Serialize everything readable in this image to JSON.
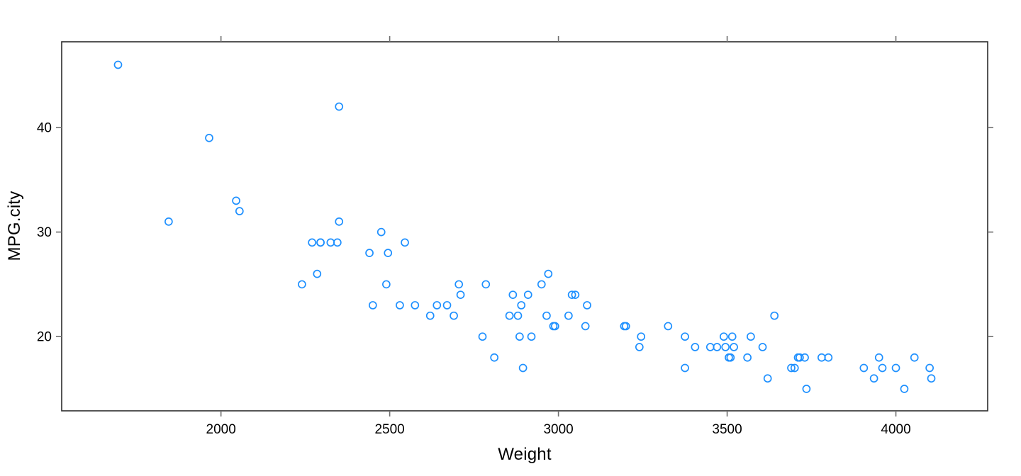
{
  "chart_data": {
    "type": "scatter",
    "title": "",
    "xlabel": "Weight",
    "ylabel": "MPG.city",
    "x_ticks": [
      2000,
      2500,
      3000,
      3500,
      4000
    ],
    "y_ticks": [
      20,
      30,
      40
    ],
    "xlim": [
      1528,
      4272
    ],
    "ylim": [
      12.9,
      48.2
    ],
    "grid": false,
    "legend": null,
    "marker": {
      "shape": "open-circle",
      "color": "#1E90FF",
      "radius": 5,
      "stroke_width": 1.7
    },
    "axis_box_color": "#2b2b2b",
    "tick_color": "#6e6e6e",
    "text_color": "#000000",
    "tick_sides": [
      "bottom",
      "left",
      "top",
      "right"
    ],
    "label_sides": [
      "bottom",
      "left"
    ],
    "points": [
      [
        1695,
        46
      ],
      [
        1845,
        31
      ],
      [
        1965,
        39
      ],
      [
        2045,
        33
      ],
      [
        2055,
        32
      ],
      [
        2240,
        25
      ],
      [
        2270,
        29
      ],
      [
        2285,
        26
      ],
      [
        2295,
        29
      ],
      [
        2295,
        29
      ],
      [
        2325,
        29
      ],
      [
        2345,
        29
      ],
      [
        2350,
        31
      ],
      [
        2350,
        42
      ],
      [
        2440,
        28
      ],
      [
        2450,
        23
      ],
      [
        2475,
        30
      ],
      [
        2490,
        25
      ],
      [
        2495,
        28
      ],
      [
        2530,
        23
      ],
      [
        2545,
        29
      ],
      [
        2575,
        23
      ],
      [
        2620,
        22
      ],
      [
        2640,
        23
      ],
      [
        2670,
        23
      ],
      [
        2690,
        22
      ],
      [
        2705,
        25
      ],
      [
        2710,
        24
      ],
      [
        2775,
        20
      ],
      [
        2785,
        25
      ],
      [
        2810,
        18
      ],
      [
        2855,
        22
      ],
      [
        2865,
        24
      ],
      [
        2880,
        22
      ],
      [
        2885,
        20
      ],
      [
        2890,
        23
      ],
      [
        2895,
        17
      ],
      [
        2910,
        24
      ],
      [
        2920,
        20
      ],
      [
        2950,
        25
      ],
      [
        2965,
        22
      ],
      [
        2970,
        26
      ],
      [
        2985,
        21
      ],
      [
        2990,
        21
      ],
      [
        3030,
        22
      ],
      [
        3040,
        24
      ],
      [
        3050,
        24
      ],
      [
        3080,
        21
      ],
      [
        3085,
        23
      ],
      [
        3195,
        21
      ],
      [
        3200,
        21
      ],
      [
        3240,
        19
      ],
      [
        3245,
        20
      ],
      [
        3325,
        21
      ],
      [
        3375,
        17
      ],
      [
        3375,
        20
      ],
      [
        3405,
        19
      ],
      [
        3450,
        19
      ],
      [
        3470,
        19
      ],
      [
        3490,
        20
      ],
      [
        3495,
        19
      ],
      [
        3505,
        18
      ],
      [
        3510,
        18
      ],
      [
        3515,
        20
      ],
      [
        3520,
        19
      ],
      [
        3560,
        18
      ],
      [
        3570,
        20
      ],
      [
        3605,
        19
      ],
      [
        3620,
        16
      ],
      [
        3640,
        22
      ],
      [
        3690,
        17
      ],
      [
        3700,
        17
      ],
      [
        3710,
        18
      ],
      [
        3715,
        18
      ],
      [
        3730,
        18
      ],
      [
        3735,
        15
      ],
      [
        3780,
        18
      ],
      [
        3800,
        18
      ],
      [
        3905,
        17
      ],
      [
        3935,
        16
      ],
      [
        3950,
        18
      ],
      [
        3960,
        17
      ],
      [
        4000,
        17
      ],
      [
        4025,
        15
      ],
      [
        4055,
        18
      ],
      [
        4100,
        17
      ],
      [
        4105,
        16
      ]
    ]
  }
}
